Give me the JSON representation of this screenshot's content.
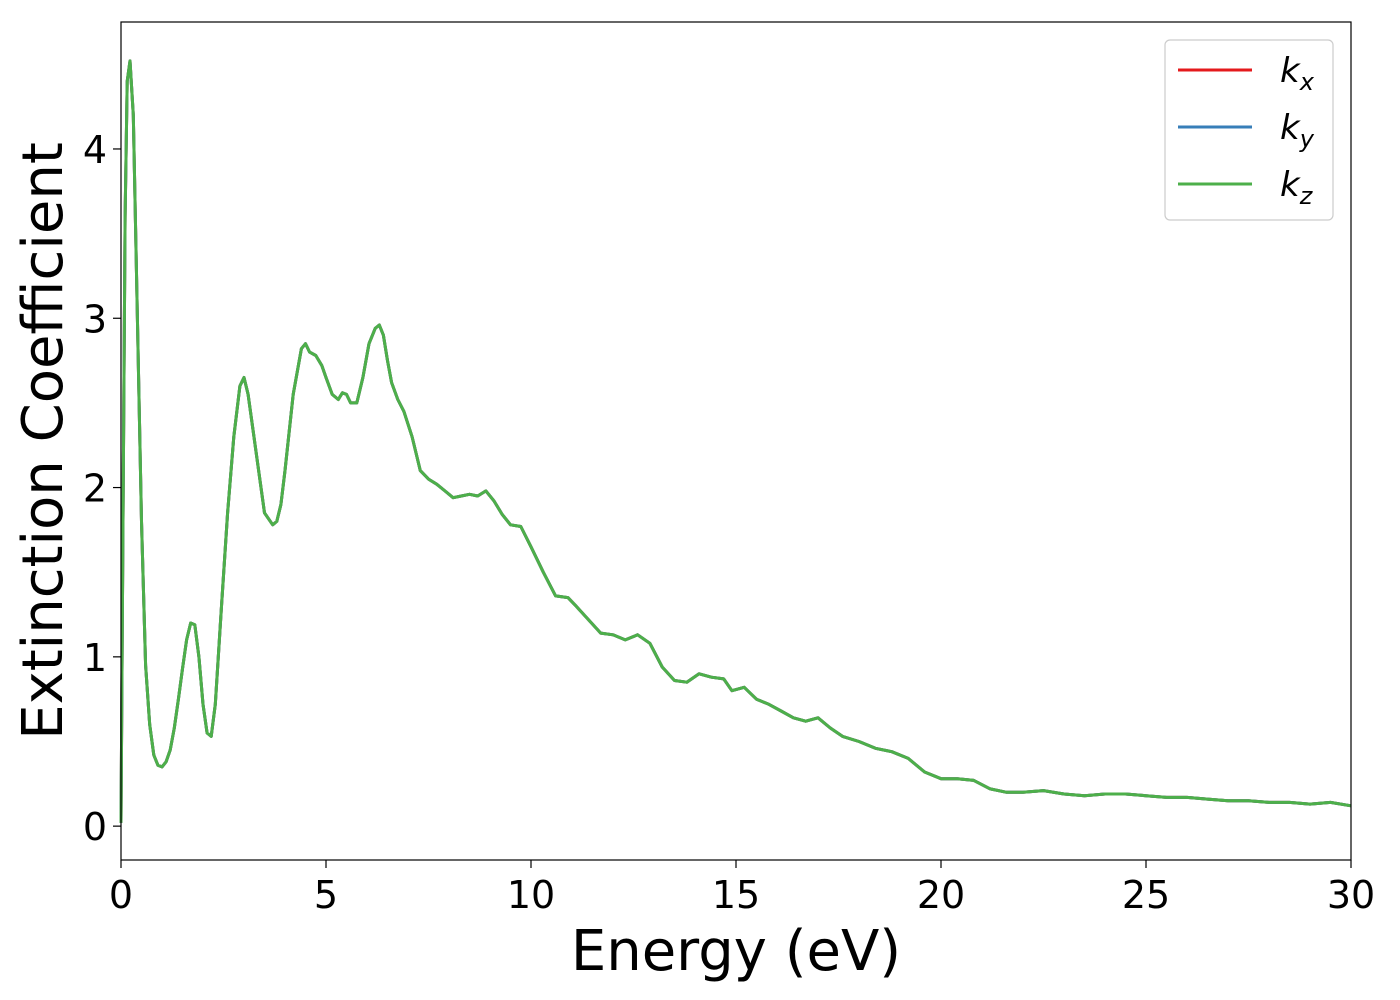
{
  "chart_data": {
    "type": "line",
    "xlabel": "Energy (eV)",
    "ylabel": "Extinction Coefficient",
    "xlim": [
      0,
      30
    ],
    "ylim": [
      -0.2,
      4.75
    ],
    "xticks": [
      0,
      5,
      10,
      15,
      20,
      25,
      30
    ],
    "yticks": [
      0,
      1,
      2,
      3,
      4
    ],
    "grid": false,
    "legend": "top-right",
    "series": [
      {
        "name": "k",
        "sub": "x",
        "color": "#e41a1c"
      },
      {
        "name": "k",
        "sub": "y",
        "color": "#377eb8"
      },
      {
        "name": "k",
        "sub": "z",
        "color": "#4daf4a"
      }
    ],
    "x": [
      0.0,
      0.05,
      0.1,
      0.15,
      0.22,
      0.3,
      0.4,
      0.5,
      0.6,
      0.7,
      0.8,
      0.9,
      1.0,
      1.1,
      1.2,
      1.3,
      1.4,
      1.5,
      1.6,
      1.7,
      1.8,
      1.9,
      2.0,
      2.1,
      2.2,
      2.3,
      2.45,
      2.6,
      2.75,
      2.9,
      3.0,
      3.1,
      3.3,
      3.5,
      3.7,
      3.8,
      3.9,
      4.0,
      4.2,
      4.4,
      4.5,
      4.6,
      4.75,
      4.9,
      5.0,
      5.15,
      5.3,
      5.4,
      5.5,
      5.6,
      5.75,
      5.9,
      6.05,
      6.2,
      6.3,
      6.4,
      6.5,
      6.6,
      6.75,
      6.9,
      7.1,
      7.3,
      7.5,
      7.7,
      7.9,
      8.1,
      8.3,
      8.5,
      8.7,
      8.9,
      9.1,
      9.3,
      9.5,
      9.75,
      10.0,
      10.3,
      10.6,
      10.9,
      11.1,
      11.4,
      11.7,
      12.0,
      12.3,
      12.6,
      12.9,
      13.2,
      13.5,
      13.8,
      14.1,
      14.4,
      14.7,
      14.9,
      15.2,
      15.5,
      15.8,
      16.1,
      16.4,
      16.7,
      17.0,
      17.3,
      17.6,
      18.0,
      18.4,
      18.8,
      19.2,
      19.6,
      20.0,
      20.4,
      20.8,
      21.2,
      21.6,
      22.0,
      22.5,
      23.0,
      23.5,
      24.0,
      24.5,
      25.0,
      25.5,
      26.0,
      26.5,
      27.0,
      27.5,
      28.0,
      28.5,
      29.0,
      29.5,
      30.0
    ],
    "y": [
      0.02,
      1.8,
      3.6,
      4.4,
      4.52,
      4.2,
      3.0,
      1.8,
      0.95,
      0.6,
      0.42,
      0.36,
      0.35,
      0.38,
      0.45,
      0.58,
      0.75,
      0.93,
      1.1,
      1.2,
      1.19,
      1.0,
      0.72,
      0.55,
      0.53,
      0.72,
      1.3,
      1.85,
      2.3,
      2.6,
      2.65,
      2.55,
      2.2,
      1.85,
      1.78,
      1.8,
      1.9,
      2.1,
      2.55,
      2.82,
      2.85,
      2.8,
      2.78,
      2.72,
      2.65,
      2.55,
      2.52,
      2.56,
      2.55,
      2.5,
      2.5,
      2.65,
      2.85,
      2.94,
      2.96,
      2.9,
      2.75,
      2.62,
      2.52,
      2.45,
      2.3,
      2.1,
      2.05,
      2.02,
      1.98,
      1.94,
      1.95,
      1.96,
      1.95,
      1.98,
      1.92,
      1.84,
      1.78,
      1.77,
      1.65,
      1.5,
      1.36,
      1.35,
      1.3,
      1.22,
      1.14,
      1.13,
      1.1,
      1.13,
      1.08,
      0.94,
      0.86,
      0.85,
      0.9,
      0.88,
      0.87,
      0.8,
      0.82,
      0.75,
      0.72,
      0.68,
      0.64,
      0.62,
      0.64,
      0.58,
      0.53,
      0.5,
      0.46,
      0.44,
      0.4,
      0.32,
      0.28,
      0.28,
      0.27,
      0.22,
      0.2,
      0.2,
      0.21,
      0.19,
      0.18,
      0.19,
      0.19,
      0.18,
      0.17,
      0.17,
      0.16,
      0.15,
      0.15,
      0.14,
      0.14,
      0.13,
      0.14,
      0.12
    ]
  }
}
